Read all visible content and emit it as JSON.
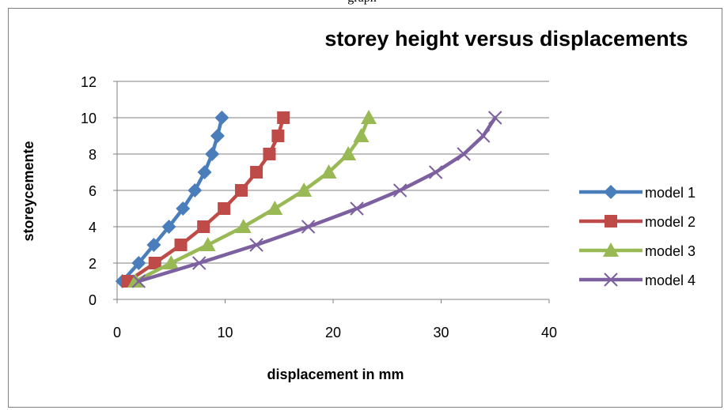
{
  "header_text": "graph",
  "chart_data": {
    "type": "line",
    "title": "storey height versus displacements",
    "xlabel": "displacement in mm",
    "ylabel": "storeycemente",
    "xlim": [
      0,
      40
    ],
    "ylim": [
      0,
      12
    ],
    "xticks": [
      0,
      10,
      20,
      30,
      40
    ],
    "yticks": [
      0,
      2,
      4,
      6,
      8,
      10,
      12
    ],
    "grid": "horizontal",
    "legend_position": "right",
    "series": [
      {
        "name": "model 1",
        "color": "#4a7ebb",
        "marker": "diamond",
        "points": [
          [
            0.5,
            1
          ],
          [
            2,
            2
          ],
          [
            3.4,
            3
          ],
          [
            4.8,
            4
          ],
          [
            6.1,
            5
          ],
          [
            7.2,
            6
          ],
          [
            8.1,
            7
          ],
          [
            8.8,
            8
          ],
          [
            9.3,
            9
          ],
          [
            9.7,
            10
          ]
        ]
      },
      {
        "name": "model 2",
        "color": "#be4b48",
        "marker": "square",
        "points": [
          [
            1,
            1
          ],
          [
            3.5,
            2
          ],
          [
            5.9,
            3
          ],
          [
            8,
            4
          ],
          [
            9.9,
            5
          ],
          [
            11.5,
            6
          ],
          [
            12.9,
            7
          ],
          [
            14.1,
            8
          ],
          [
            14.9,
            9
          ],
          [
            15.4,
            10
          ]
        ]
      },
      {
        "name": "model 3",
        "color": "#98b954",
        "marker": "triangle",
        "points": [
          [
            1.7,
            1
          ],
          [
            5,
            2
          ],
          [
            8.4,
            3
          ],
          [
            11.7,
            4
          ],
          [
            14.6,
            5
          ],
          [
            17.3,
            6
          ],
          [
            19.6,
            7
          ],
          [
            21.4,
            8
          ],
          [
            22.6,
            9
          ],
          [
            23.3,
            10
          ]
        ]
      },
      {
        "name": "model 4",
        "color": "#7d60a0",
        "marker": "x",
        "points": [
          [
            2,
            1
          ],
          [
            7.6,
            2
          ],
          [
            12.9,
            3
          ],
          [
            17.7,
            4
          ],
          [
            22.2,
            5
          ],
          [
            26.2,
            6
          ],
          [
            29.5,
            7
          ],
          [
            32.1,
            8
          ],
          [
            33.9,
            9
          ],
          [
            35,
            10
          ]
        ]
      }
    ]
  }
}
